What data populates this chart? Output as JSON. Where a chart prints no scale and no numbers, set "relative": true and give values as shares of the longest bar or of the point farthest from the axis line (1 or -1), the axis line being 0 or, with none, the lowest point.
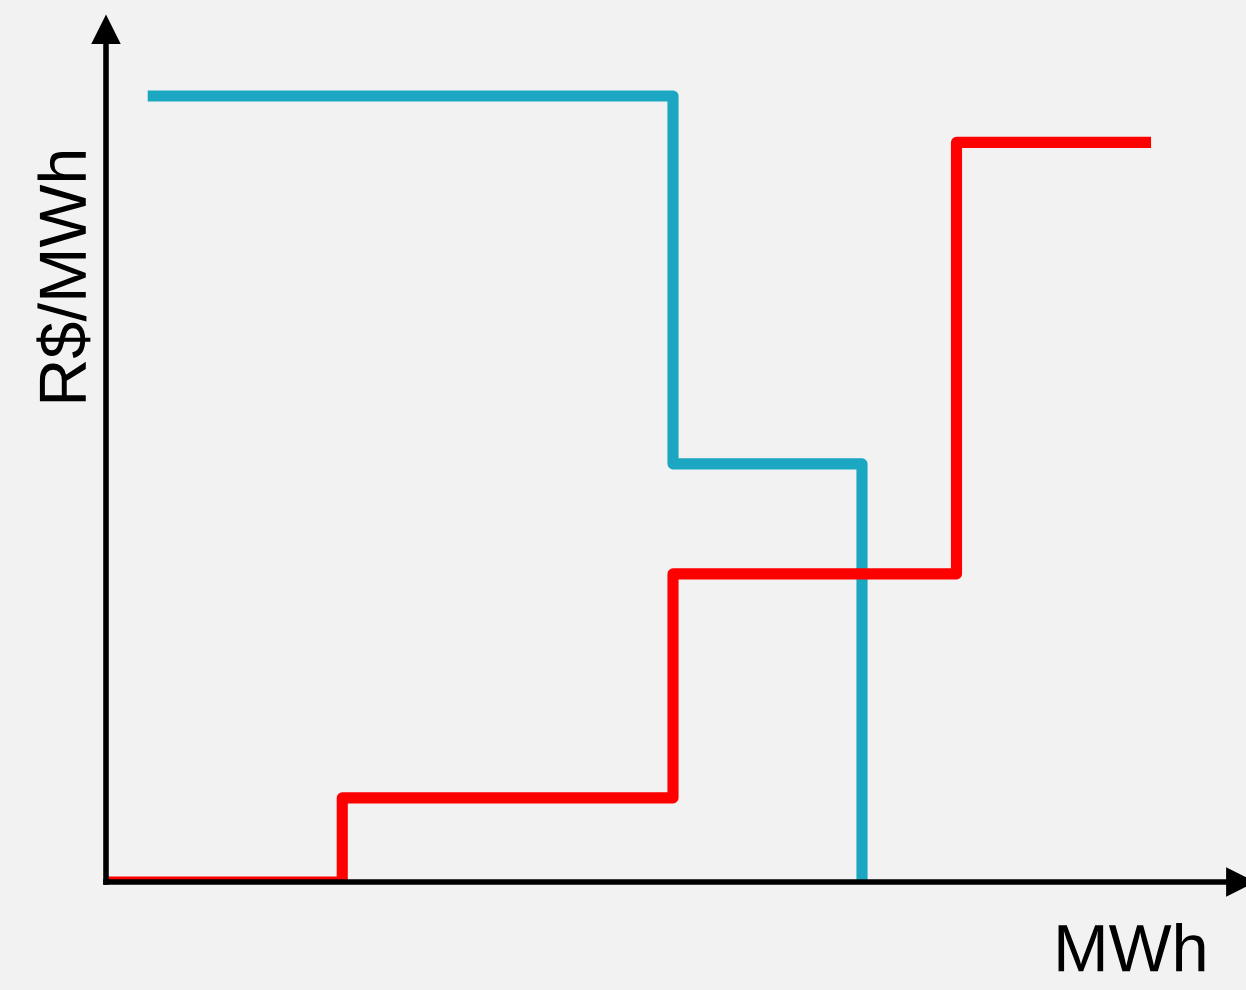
{
  "chart_data": {
    "type": "step",
    "relative": true,
    "xlabel": "MWh",
    "ylabel": "R$/MWh",
    "categories": [
      null,
      null,
      null,
      null,
      null,
      null,
      null,
      null,
      null,
      null,
      null,
      null,
      null,
      null,
      null,
      null,
      null,
      null,
      null,
      null,
      null,
      null,
      null,
      null
    ],
    "series": [
      {
        "color": "#1ba7c1",
        "values": [
          null,
          1,
          1,
          1,
          1,
          1,
          1,
          1,
          1,
          1,
          1,
          1,
          0.532,
          0.532,
          0.532,
          0.532,
          0,
          null,
          null,
          null,
          null,
          null,
          null,
          null
        ]
      },
      {
        "color": "#ff0000",
        "values": [
          0,
          0,
          0,
          0,
          0,
          0.107,
          0.107,
          0.107,
          0.107,
          0.107,
          0.107,
          0.107,
          0.392,
          0.392,
          0.392,
          0.392,
          0.392,
          0.392,
          0.941,
          0.941,
          0.941,
          0.941,
          0.941,
          null
        ]
      }
    ],
    "grid": false,
    "legend": false
  }
}
